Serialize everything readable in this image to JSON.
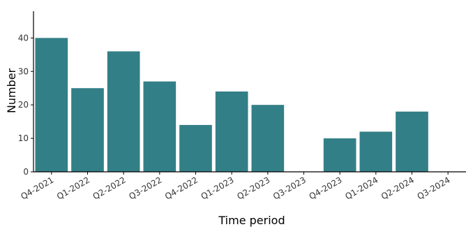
{
  "chart_data": {
    "type": "bar",
    "title": "",
    "xlabel": "Time period",
    "ylabel": "Number",
    "categories": [
      "Q4-2021",
      "Q1-2022",
      "Q2-2022",
      "Q3-2022",
      "Q4-2022",
      "Q1-2023",
      "Q2-2023",
      "Q3-2023",
      "Q4-2023",
      "Q1-2024",
      "Q2-2024",
      "Q3-2024"
    ],
    "values": [
      40,
      25,
      36,
      27,
      14,
      24,
      20,
      0,
      10,
      12,
      18,
      0
    ],
    "ylim": [
      0,
      48
    ],
    "yticks": [
      0,
      10,
      20,
      30,
      40
    ],
    "bar_color": "#337f87",
    "grid": false,
    "legend": "none"
  }
}
